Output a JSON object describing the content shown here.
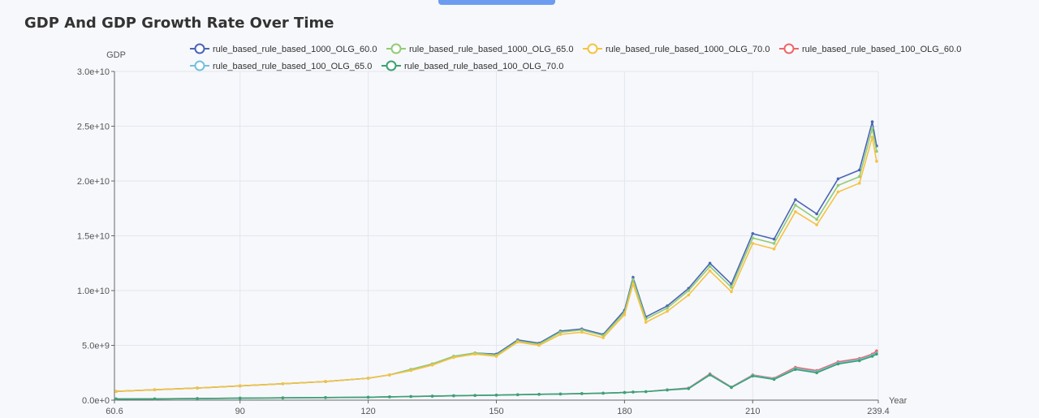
{
  "title": "GDP And GDP Growth Rate Over Time",
  "chart_data": {
    "type": "line",
    "title": "GDP And GDP Growth Rate Over Time",
    "xlabel": "Year",
    "ylabel": "GDP",
    "xlim": [
      60.6,
      239.4
    ],
    "ylim": [
      0,
      30000000000
    ],
    "x_ticks": [
      "60.6",
      "90",
      "120",
      "150",
      "180",
      "210",
      "239.4"
    ],
    "y_ticks": [
      "0.0e+0",
      "5.0e+9",
      "1.0e+10",
      "1.5e+10",
      "2.0e+10",
      "2.5e+10",
      "3.0e+10"
    ],
    "grid": true,
    "legend_position": "top",
    "x": [
      61,
      70,
      80,
      90,
      100,
      110,
      120,
      125,
      130,
      135,
      140,
      145,
      150,
      155,
      160,
      165,
      170,
      175,
      180,
      182,
      185,
      190,
      195,
      200,
      205,
      210,
      215,
      220,
      225,
      230,
      235,
      238,
      239
    ],
    "series": [
      {
        "name": "rule_based_rule_based_1000_OLG_60.0",
        "color": "#4a65b5",
        "values": [
          800000000.0,
          950000000.0,
          1100000000.0,
          1300000000.0,
          1500000000.0,
          1700000000.0,
          2000000000.0,
          2300000000.0,
          2800000000.0,
          3300000000.0,
          4000000000.0,
          4300000000.0,
          4200000000.0,
          5500000000.0,
          5200000000.0,
          6300000000.0,
          6500000000.0,
          6000000000.0,
          8200000000.0,
          11200000000.0,
          7600000000.0,
          8600000000.0,
          10200000000.0,
          12500000000.0,
          10600000000.0,
          15200000000.0,
          14700000000.0,
          18300000000.0,
          17000000000.0,
          20200000000.0,
          21000000000.0,
          25400000000.0,
          23200000000.0
        ]
      },
      {
        "name": "rule_based_rule_based_1000_OLG_65.0",
        "color": "#91cc75",
        "values": [
          800000000.0,
          950000000.0,
          1100000000.0,
          1300000000.0,
          1500000000.0,
          1700000000.0,
          2000000000.0,
          2300000000.0,
          2800000000.0,
          3300000000.0,
          4000000000.0,
          4300000000.0,
          4100000000.0,
          5400000000.0,
          5100000000.0,
          6200000000.0,
          6400000000.0,
          5900000000.0,
          8000000000.0,
          11000000000.0,
          7400000000.0,
          8400000000.0,
          10000000000.0,
          12200000000.0,
          10300000000.0,
          14800000000.0,
          14300000000.0,
          17800000000.0,
          16500000000.0,
          19600000000.0,
          20400000000.0,
          24800000000.0,
          22700000000.0
        ]
      },
      {
        "name": "rule_based_rule_based_1000_OLG_70.0",
        "color": "#f5c243",
        "values": [
          800000000.0,
          950000000.0,
          1100000000.0,
          1300000000.0,
          1500000000.0,
          1700000000.0,
          2000000000.0,
          2300000000.0,
          2700000000.0,
          3200000000.0,
          3900000000.0,
          4200000000.0,
          4000000000.0,
          5300000000.0,
          5000000000.0,
          6000000000.0,
          6200000000.0,
          5700000000.0,
          7800000000.0,
          10600000000.0,
          7100000000.0,
          8100000000.0,
          9600000000.0,
          11800000000.0,
          9900000000.0,
          14300000000.0,
          13800000000.0,
          17200000000.0,
          16000000000.0,
          19000000000.0,
          19800000000.0,
          24000000000.0,
          21800000000.0
        ]
      },
      {
        "name": "rule_based_rule_based_100_OLG_60.0",
        "color": "#ee6666",
        "values": [
          100000000.0,
          120000000.0,
          150000000.0,
          180000000.0,
          210000000.0,
          240000000.0,
          270000000.0,
          300000000.0,
          330000000.0,
          360000000.0,
          400000000.0,
          430000000.0,
          460000000.0,
          500000000.0,
          530000000.0,
          560000000.0,
          600000000.0,
          640000000.0,
          700000000.0,
          740000000.0,
          780000000.0,
          950000000.0,
          1100000000.0,
          2400000000.0,
          1200000000.0,
          2300000000.0,
          2000000000.0,
          3000000000.0,
          2700000000.0,
          3500000000.0,
          3800000000.0,
          4200000000.0,
          4500000000.0
        ]
      },
      {
        "name": "rule_based_rule_based_100_OLG_65.0",
        "color": "#73c0de",
        "values": [
          100000000.0,
          120000000.0,
          150000000.0,
          180000000.0,
          210000000.0,
          240000000.0,
          270000000.0,
          300000000.0,
          330000000.0,
          360000000.0,
          400000000.0,
          430000000.0,
          460000000.0,
          500000000.0,
          530000000.0,
          560000000.0,
          600000000.0,
          640000000.0,
          700000000.0,
          740000000.0,
          780000000.0,
          940000000.0,
          1080000000.0,
          2350000000.0,
          1180000000.0,
          2250000000.0,
          1950000000.0,
          2900000000.0,
          2600000000.0,
          3400000000.0,
          3700000000.0,
          4100000000.0,
          4300000000.0
        ]
      },
      {
        "name": "rule_based_rule_based_100_OLG_70.0",
        "color": "#3ba272",
        "values": [
          100000000.0,
          120000000.0,
          150000000.0,
          180000000.0,
          210000000.0,
          240000000.0,
          270000000.0,
          300000000.0,
          330000000.0,
          360000000.0,
          400000000.0,
          430000000.0,
          460000000.0,
          500000000.0,
          530000000.0,
          560000000.0,
          600000000.0,
          640000000.0,
          700000000.0,
          740000000.0,
          780000000.0,
          920000000.0,
          1050000000.0,
          2300000000.0,
          1150000000.0,
          2200000000.0,
          1900000000.0,
          2800000000.0,
          2500000000.0,
          3300000000.0,
          3600000000.0,
          4000000000.0,
          4200000000.0
        ]
      }
    ]
  }
}
